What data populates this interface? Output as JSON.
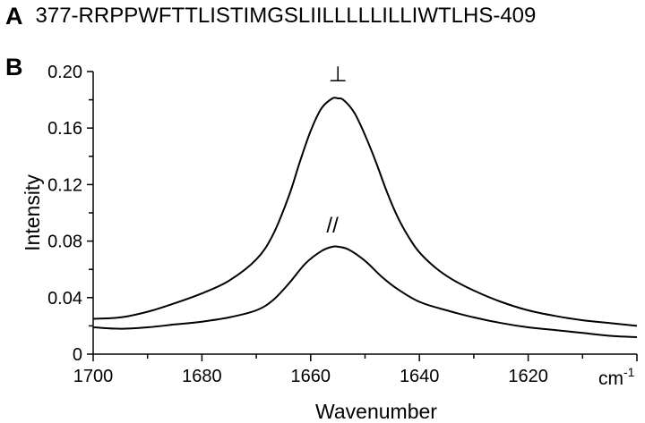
{
  "figure": {
    "panel_a_label": "A",
    "sequence": "377-RRPPWFTTLISTIMGSLIILLLLLILLIWTLHS-409",
    "panel_b_label": "B"
  },
  "chart_data": {
    "type": "line",
    "title": "",
    "xlabel": "Wavenumber",
    "ylabel": "Intensity",
    "x_unit": "cm-1",
    "xlim": [
      1700,
      1600
    ],
    "ylim": [
      0,
      0.2
    ],
    "x_ticks": [
      "1700",
      "1680",
      "1660",
      "1640",
      "1620"
    ],
    "y_ticks": [
      "0",
      "0.04",
      "0.08",
      "0.12",
      "0.16",
      "0.20"
    ],
    "series": [
      {
        "name": "⊥",
        "x": [
          1700,
          1695,
          1690,
          1685,
          1680,
          1675,
          1670,
          1667,
          1664,
          1662,
          1660,
          1658,
          1656,
          1655,
          1654,
          1652,
          1650,
          1648,
          1646,
          1644,
          1642,
          1640,
          1637,
          1634,
          1630,
          1625,
          1620,
          1615,
          1610,
          1605,
          1600
        ],
        "values": [
          0.025,
          0.026,
          0.03,
          0.036,
          0.043,
          0.052,
          0.067,
          0.084,
          0.112,
          0.136,
          0.158,
          0.174,
          0.181,
          0.181,
          0.18,
          0.171,
          0.155,
          0.136,
          0.115,
          0.097,
          0.083,
          0.072,
          0.061,
          0.053,
          0.045,
          0.037,
          0.031,
          0.027,
          0.024,
          0.022,
          0.02
        ]
      },
      {
        "name": "//",
        "x": [
          1700,
          1695,
          1690,
          1685,
          1680,
          1675,
          1670,
          1667,
          1664,
          1661,
          1658,
          1656,
          1655,
          1653,
          1650,
          1647,
          1644,
          1640,
          1635,
          1630,
          1625,
          1620,
          1615,
          1610,
          1605,
          1600
        ],
        "values": [
          0.019,
          0.018,
          0.019,
          0.021,
          0.023,
          0.026,
          0.031,
          0.038,
          0.05,
          0.064,
          0.073,
          0.076,
          0.076,
          0.074,
          0.066,
          0.055,
          0.046,
          0.037,
          0.031,
          0.026,
          0.022,
          0.019,
          0.017,
          0.015,
          0.013,
          0.012
        ]
      }
    ],
    "annotations": [
      {
        "text": "⊥",
        "x": 1655,
        "y": 0.193
      },
      {
        "text": "//",
        "x": 1656,
        "y": 0.086
      }
    ]
  }
}
